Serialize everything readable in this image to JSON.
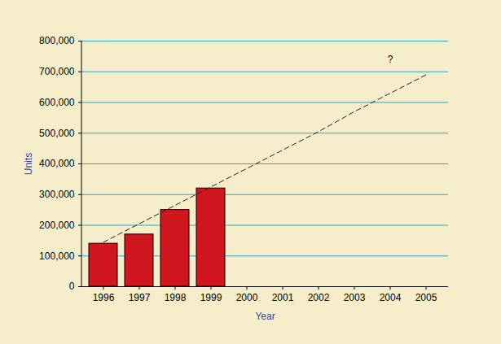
{
  "chart_data": {
    "type": "bar",
    "x_label": "Year",
    "y_label": "Units",
    "categories": [
      "1996",
      "1997",
      "1998",
      "1999",
      "2000",
      "2001",
      "2002",
      "2003",
      "2004",
      "2005"
    ],
    "series": [
      {
        "type": "bar",
        "color": "#d0161e",
        "values": [
          140000,
          170000,
          250000,
          320000,
          null,
          null,
          null,
          null,
          null,
          null
        ]
      },
      {
        "type": "line",
        "color": "#222222",
        "line_style": "dashed",
        "values": [
          145000,
          205000,
          265000,
          325000,
          385000,
          445000,
          505000,
          570000,
          630000,
          690000
        ]
      }
    ],
    "annotations": [
      {
        "text": "?",
        "x": "2004",
        "y": 740000
      }
    ],
    "ylim": [
      0,
      800000
    ],
    "yticks": [
      0,
      {
        "value": 100000,
        "label": "100,000"
      },
      {
        "value": 200000,
        "label": "200,000"
      },
      {
        "value": 300000,
        "label": "300,000"
      },
      {
        "value": 400000,
        "label": "400,000"
      },
      {
        "value": 500000,
        "label": "500,000"
      },
      {
        "value": 600000,
        "label": "600,000"
      },
      {
        "value": 700000,
        "label": "700,000"
      },
      {
        "value": 800000,
        "label": "800,000"
      }
    ],
    "grid": true
  }
}
